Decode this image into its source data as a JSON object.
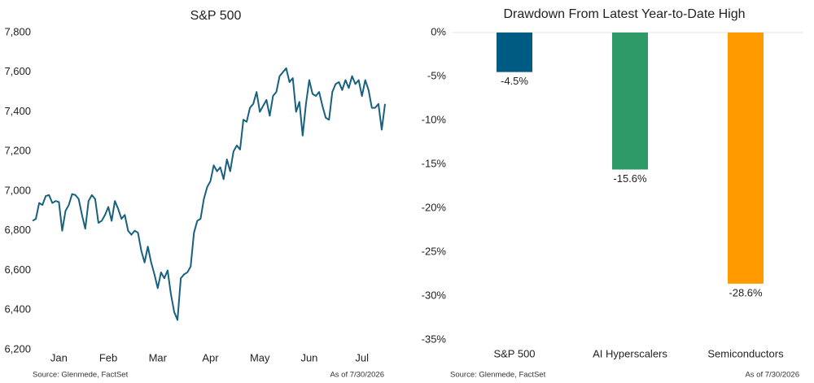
{
  "chart_data": [
    {
      "type": "line",
      "title": "S&P 500",
      "source": "Source: Glenmede, FactSet",
      "note": "As of 7/30/2026",
      "color": "#17617e",
      "grid": false,
      "categories": [
        null,
        null,
        null,
        null,
        null,
        null,
        null,
        null,
        "Jan",
        null,
        null,
        null,
        null,
        null,
        null,
        null,
        null,
        null,
        null,
        null,
        null,
        null,
        null,
        "Feb",
        null,
        null,
        null,
        null,
        null,
        null,
        null,
        null,
        null,
        null,
        null,
        null,
        null,
        null,
        "Mar",
        null,
        null,
        null,
        null,
        null,
        null,
        null,
        null,
        null,
        null,
        null,
        null,
        null,
        null,
        null,
        "Apr",
        null,
        null,
        null,
        null,
        null,
        null,
        null,
        null,
        null,
        null,
        null,
        null,
        null,
        null,
        "May",
        null,
        null,
        null,
        null,
        null,
        null,
        null,
        null,
        null,
        null,
        null,
        null,
        null,
        null,
        "Jun",
        null,
        null,
        null,
        null,
        null,
        null,
        null,
        null,
        null,
        null,
        null,
        null,
        null,
        null,
        null,
        "Jul",
        null,
        null,
        null,
        null,
        null,
        null,
        null
      ],
      "values": [
        6850,
        6860,
        6940,
        6930,
        6975,
        6980,
        6940,
        6950,
        6945,
        6800,
        6900,
        6930,
        6985,
        6980,
        6960,
        6880,
        6810,
        6950,
        6980,
        6960,
        6840,
        6850,
        6880,
        6920,
        6850,
        6950,
        6910,
        6860,
        6880,
        6800,
        6780,
        6800,
        6790,
        6700,
        6640,
        6720,
        6640,
        6580,
        6510,
        6590,
        6560,
        6600,
        6480,
        6390,
        6350,
        6560,
        6580,
        6590,
        6620,
        6790,
        6850,
        6860,
        6960,
        7020,
        7050,
        7130,
        7100,
        7120,
        7060,
        7160,
        7100,
        7200,
        7230,
        7210,
        7360,
        7350,
        7420,
        7440,
        7500,
        7400,
        7430,
        7460,
        7380,
        7480,
        7500,
        7580,
        7600,
        7620,
        7550,
        7570,
        7400,
        7450,
        7280,
        7440,
        7560,
        7490,
        7480,
        7500,
        7430,
        7370,
        7360,
        7500,
        7540,
        7550,
        7510,
        7560,
        7520,
        7580,
        7540,
        7560,
        7480,
        7560,
        7510,
        7420,
        7420,
        7440,
        7310,
        7440
      ],
      "ylim": [
        6200,
        7800
      ],
      "yticks": [
        {
          "value": 6200,
          "label": "6,200"
        },
        {
          "value": 6400,
          "label": "6,400"
        },
        {
          "value": 6600,
          "label": "6,600"
        },
        {
          "value": 6800,
          "label": "6,800"
        },
        {
          "value": 7000,
          "label": "7,000"
        },
        {
          "value": 7200,
          "label": "7,200"
        },
        {
          "value": 7400,
          "label": "7,400"
        },
        {
          "value": 7600,
          "label": "7,600"
        },
        {
          "value": 7800,
          "label": "7,800"
        }
      ]
    },
    {
      "type": "bar",
      "title": "Drawdown From Latest Year-to-Date High",
      "source": "Source: Glenmede, FactSet",
      "note": "As of 7/30/2026",
      "categories": [
        "S&P 500",
        "AI Hyperscalers",
        "Semiconductors"
      ],
      "values": [
        -4.5,
        -15.6,
        -28.6
      ],
      "value_labels": [
        "-4.5%",
        "-15.6%",
        "-28.6%"
      ],
      "colors": [
        "#005b82",
        "#2e9a68",
        "#ff9a00"
      ],
      "grid": false,
      "ylim": [
        -35,
        0
      ],
      "yticks": [
        {
          "value": 0,
          "label": "0%"
        },
        {
          "value": -5,
          "label": "-5%"
        },
        {
          "value": -10,
          "label": "-10%"
        },
        {
          "value": -15,
          "label": "-15%"
        },
        {
          "value": -20,
          "label": "-20%"
        },
        {
          "value": -25,
          "label": "-25%"
        },
        {
          "value": -30,
          "label": "-30%"
        },
        {
          "value": -35,
          "label": "-35%"
        }
      ]
    }
  ]
}
